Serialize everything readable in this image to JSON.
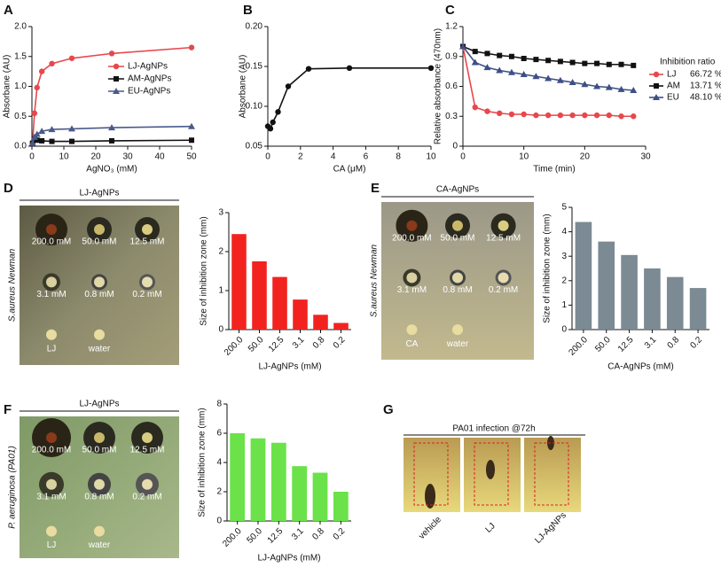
{
  "panel_labels": [
    "A",
    "B",
    "C",
    "D",
    "E",
    "F",
    "G"
  ],
  "chart_data": [
    {
      "type": "line",
      "xlabel": "AgNO₃ (mM)",
      "ylabel": "Absorbane (AU)",
      "x": [
        0.2,
        0.8,
        1.6,
        3.1,
        6.25,
        12.5,
        25,
        50
      ],
      "xlim": [
        0,
        50
      ],
      "xticks": [
        0,
        10,
        20,
        30,
        40,
        50
      ],
      "ylim": [
        0,
        2
      ],
      "yticks": [
        {
          "value": 0,
          "label": "0.0"
        },
        0.5,
        {
          "value": 1,
          "label": "1.0"
        },
        1.5,
        {
          "value": 2,
          "label": "2.0"
        }
      ],
      "legend": "inside-right",
      "series": [
        {
          "name": "LJ-AgNPs",
          "color": "#e8474c",
          "marker": "circle",
          "values": [
            0.05,
            0.55,
            0.98,
            1.25,
            1.38,
            1.47,
            1.55,
            1.65
          ]
        },
        {
          "name": "AM-AgNPs",
          "color": "#111111",
          "marker": "square",
          "values": [
            0.05,
            0.12,
            0.1,
            0.09,
            0.08,
            0.08,
            0.09,
            0.1
          ]
        },
        {
          "name": "EU-AgNPs",
          "color": "#4a5a8c",
          "marker": "triangle",
          "values": [
            0.05,
            0.15,
            0.2,
            0.25,
            0.28,
            0.29,
            0.31,
            0.33
          ]
        }
      ]
    },
    {
      "type": "line",
      "xlabel": "CA (μM)",
      "ylabel": "Absorbane (AU)",
      "x": [
        0,
        0.16,
        0.31,
        0.625,
        1.25,
        2.5,
        5,
        10
      ],
      "xlim": [
        0,
        10
      ],
      "xticks": [
        0,
        2,
        4,
        6,
        8,
        10
      ],
      "ylim": [
        0.05,
        0.2
      ],
      "yticks": [
        0.05,
        {
          "value": 0.1,
          "label": "0.10"
        },
        0.15,
        {
          "value": 0.2,
          "label": "0.20"
        }
      ],
      "series": [
        {
          "color": "#111111",
          "marker": "circle",
          "values": [
            0.075,
            0.072,
            0.08,
            0.093,
            0.125,
            0.147,
            0.148,
            0.148
          ]
        }
      ]
    },
    {
      "type": "line",
      "xlabel": "Time (min)",
      "ylabel": "Relative absorbance (470nm)",
      "x": [
        0,
        2,
        4,
        6,
        8,
        10,
        12,
        14,
        16,
        18,
        20,
        22,
        24,
        26,
        28
      ],
      "xlim": [
        0,
        30
      ],
      "xticks": [
        0,
        10,
        20,
        30
      ],
      "ylim": [
        0,
        1.2
      ],
      "yticks": [
        0,
        0.3,
        0.6,
        0.9,
        1.2
      ],
      "legend": "outside-right",
      "legend_title": "Inhibition ratio",
      "series": [
        {
          "name": "LJ",
          "note": "66.72 %",
          "color": "#e8474c",
          "marker": "circle",
          "values": [
            1.0,
            0.39,
            0.35,
            0.33,
            0.32,
            0.32,
            0.31,
            0.31,
            0.31,
            0.31,
            0.31,
            0.31,
            0.31,
            0.3,
            0.3
          ]
        },
        {
          "name": "AM",
          "note": "13.71 %",
          "color": "#111111",
          "marker": "square",
          "values": [
            1.0,
            0.95,
            0.93,
            0.91,
            0.9,
            0.88,
            0.87,
            0.86,
            0.85,
            0.84,
            0.83,
            0.83,
            0.82,
            0.82,
            0.81
          ]
        },
        {
          "name": "EU",
          "note": "48.10 %",
          "color": "#3d4f86",
          "marker": "triangle",
          "values": [
            1.0,
            0.84,
            0.79,
            0.76,
            0.74,
            0.72,
            0.7,
            0.68,
            0.66,
            0.64,
            0.62,
            0.6,
            0.59,
            0.57,
            0.56
          ]
        }
      ]
    },
    {
      "type": "bar",
      "xlabel": "LJ-AgNPs (mM)",
      "ylabel": "Size of inhibition zone  (mm)",
      "categories": [
        "200.0",
        "50.0",
        "12.5",
        "3.1",
        "0.8",
        "0.2"
      ],
      "values": [
        2.45,
        1.75,
        1.35,
        0.77,
        0.38,
        0.17
      ],
      "color": "#f2231f",
      "ylim": [
        0,
        3
      ],
      "yticks": [
        0,
        1,
        2,
        3
      ]
    },
    {
      "type": "bar",
      "xlabel": "CA-AgNPs (mM)",
      "ylabel": "Size of inhibition zone  (mm)",
      "categories": [
        "200.0",
        "50.0",
        "12.5",
        "3.1",
        "0.8",
        "0.2"
      ],
      "values": [
        4.4,
        3.6,
        3.05,
        2.5,
        2.15,
        1.7
      ],
      "color": "#7b8a93",
      "ylim": [
        0,
        5
      ],
      "yticks": [
        0,
        1,
        2,
        3,
        4,
        5
      ]
    },
    {
      "type": "bar",
      "xlabel": "LJ-AgNPs (mM)",
      "ylabel": "Size of inhibition zone  (mm)",
      "categories": [
        "200.0",
        "50.0",
        "12.5",
        "3.1",
        "0.8",
        "0.2"
      ],
      "values": [
        6.0,
        5.65,
        5.35,
        3.75,
        3.3,
        2.0
      ],
      "color": "#6be24a",
      "ylim": [
        0,
        8
      ],
      "yticks": [
        0,
        2,
        4,
        6,
        8
      ]
    }
  ],
  "photos": [
    {
      "title": "LJ-AgNPs",
      "side_label": "S.aureus Newman",
      "wells": [
        "200.0 mM",
        "50.0 mM",
        "12.5 mM",
        "3.1 mM",
        "0.8 mM",
        "0.2 mM",
        "LJ",
        "water"
      ]
    },
    {
      "title": "CA-AgNPs",
      "side_label": "S.aureus Newman",
      "wells": [
        "200.0 mM",
        "50.0 mM",
        "12.5 mM",
        "3.1 mM",
        "0.8 mM",
        "0.2 mM",
        "CA",
        "water"
      ]
    },
    {
      "title": "LJ-AgNPs",
      "side_label": "P. aeruginosa (PA01)",
      "wells": [
        "200.0 mM",
        "50.0 mM",
        "12.5 mM",
        "3.1 mM",
        "0.8 mM",
        "0.2 mM",
        "LJ",
        "water"
      ]
    },
    {
      "title": "PA01 infection @72h",
      "wells": [
        "vehicle",
        "LJ",
        "LJ-AgNPs"
      ]
    }
  ]
}
